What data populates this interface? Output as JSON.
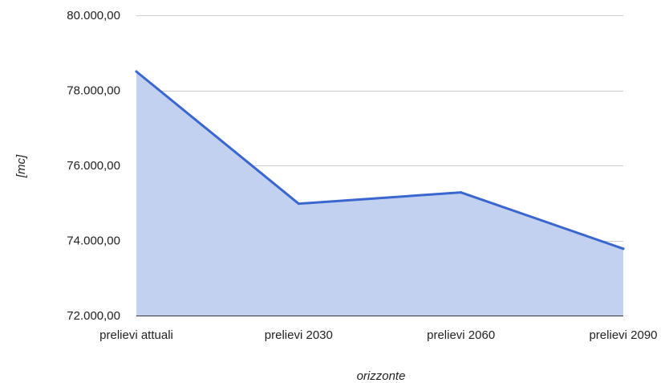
{
  "chart_data": {
    "type": "area",
    "categories": [
      "prelievi attuali",
      "prelievi 2030",
      "prelievi 2060",
      "prelievi 2090"
    ],
    "series": [
      {
        "values": [
          78500,
          74980,
          75280,
          73780
        ],
        "line_color": "#3a66cf",
        "fill_color": "#c2d1ef"
      }
    ],
    "xlabel": "orizzonte",
    "ylabel": "[mc]",
    "ylim": [
      72000,
      80000
    ],
    "yticks": [
      72000,
      74000,
      76000,
      78000,
      80000
    ],
    "ytick_labels": [
      "72.000,00",
      "74.000,00",
      "76.000,00",
      "78.000,00",
      "80.000,00"
    ],
    "grid": true,
    "legend": "none"
  }
}
